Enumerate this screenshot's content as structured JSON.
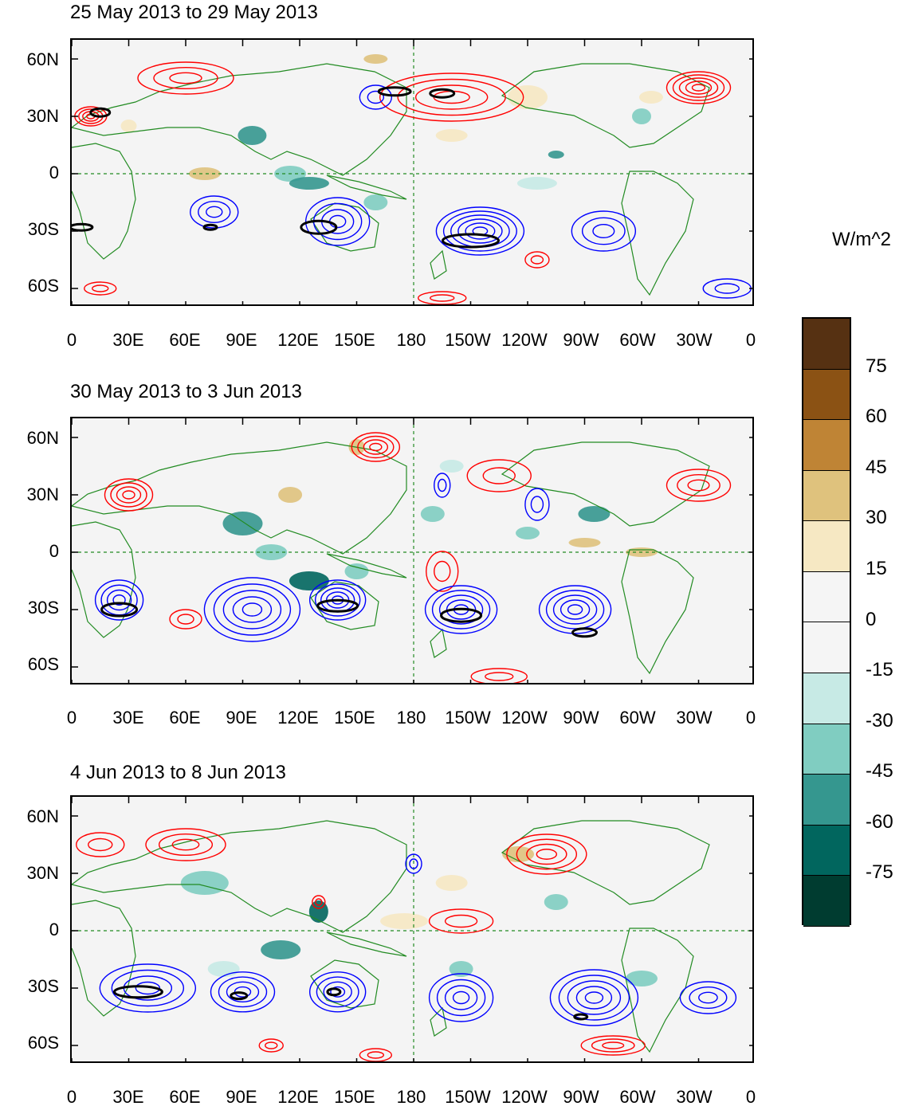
{
  "panels": [
    {
      "title": "25 May 2013 to 29 May 2013"
    },
    {
      "title": "30 May 2013 to 3 Jun 2013"
    },
    {
      "title": "4 Jun 2013 to 8 Jun 2013"
    }
  ],
  "axes": {
    "y_labels": [
      "60N",
      "30N",
      "0",
      "30S",
      "60S"
    ],
    "x_labels": [
      "0",
      "30E",
      "60E",
      "90E",
      "120E",
      "150E",
      "180",
      "150W",
      "120W",
      "90W",
      "60W",
      "30W",
      "0"
    ]
  },
  "colorbar": {
    "units": "W/m^2",
    "labels": [
      "75",
      "60",
      "45",
      "30",
      "15",
      "0",
      "-15",
      "-30",
      "-45",
      "-60",
      "-75"
    ],
    "colors": [
      "#563112",
      "#8b5214",
      "#bf8435",
      "#dfc27d",
      "#f6e8c3",
      "#f5f5f5",
      "#f5f5f5",
      "#c7eae5",
      "#80cdc1",
      "#35978f",
      "#01665e",
      "#003c30"
    ]
  },
  "contour_colors": {
    "positive": "#ff0000",
    "negative": "#0000ff",
    "significant": "#000000",
    "coast": "#228b22"
  }
}
